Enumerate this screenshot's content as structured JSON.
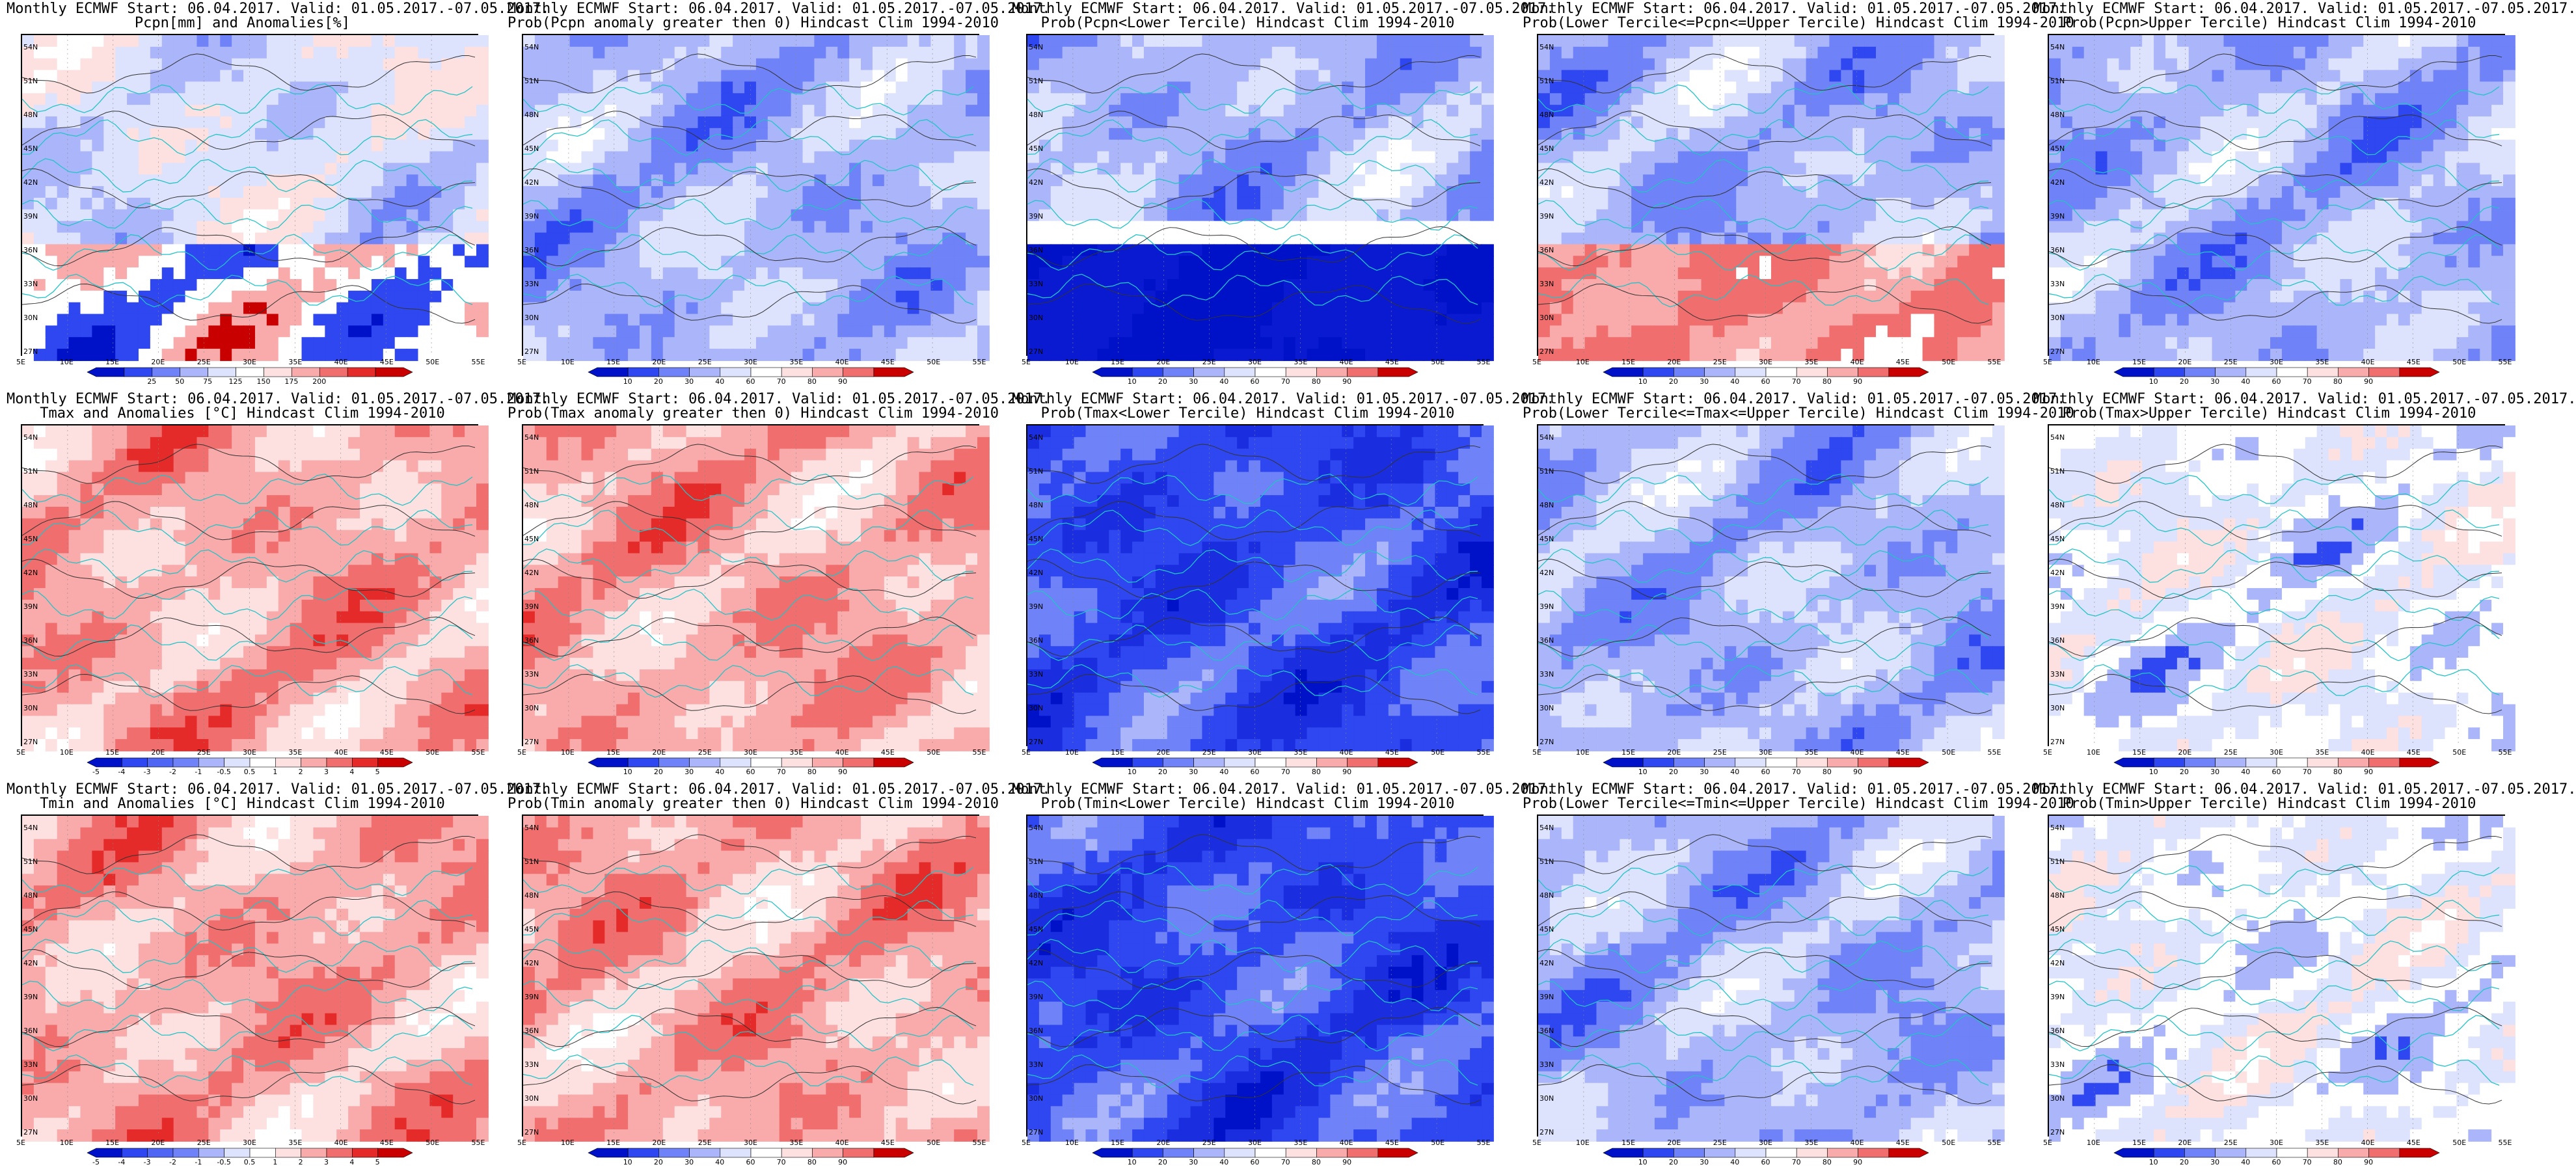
{
  "axes": {
    "lat_labels": [
      "54N",
      "51N",
      "48N",
      "45N",
      "42N",
      "39N",
      "36N",
      "33N",
      "30N",
      "27N"
    ],
    "lon_labels": [
      "5E",
      "10E",
      "15E",
      "20E",
      "25E",
      "30E",
      "35E",
      "40E",
      "45E",
      "50E",
      "55E"
    ]
  },
  "colorbars": {
    "pcpn_anom": {
      "ticks": [
        "25",
        "50",
        "75",
        "125",
        "150",
        "175",
        "200"
      ],
      "colors": [
        "#0012c8",
        "#2f47f0",
        "#6f82f7",
        "#aab5fa",
        "#dde2fd",
        "#ffffff",
        "#fde0e0",
        "#f9aaaa",
        "#f06e6e",
        "#e52a2a",
        "#c80000"
      ]
    },
    "prob": {
      "ticks": [
        "10",
        "20",
        "30",
        "40",
        "60",
        "70",
        "80",
        "90"
      ],
      "colors": [
        "#0012c8",
        "#2f47f0",
        "#6f82f7",
        "#aab5fa",
        "#dde2fd",
        "#ffffff",
        "#fde0e0",
        "#f9aaaa",
        "#f06e6e",
        "#c80000"
      ]
    },
    "temp_anom": {
      "ticks": [
        "-5",
        "-4",
        "-3",
        "-2",
        "-1",
        "-0.5",
        "0.5",
        "1",
        "2",
        "3",
        "4",
        "5"
      ],
      "colors": [
        "#0012c8",
        "#2f47f0",
        "#4f66f4",
        "#6f82f7",
        "#aab5fa",
        "#dde2fd",
        "#ffffff",
        "#fde0e0",
        "#f9aaaa",
        "#f06e6e",
        "#e52a2a",
        "#c80000"
      ]
    }
  },
  "panels": [
    {
      "line1": "Monthly ECMWF Start: 06.04.2017. Valid: 01.05.2017.-07.05.2017.",
      "line2": "Pcpn[mm] and Anomalies[%]",
      "scale": "pcpn_anom",
      "palette": "pcpn"
    },
    {
      "line1": "Monthly ECMWF Start: 06.04.2017. Valid: 01.05.2017.-07.05.2017.",
      "line2": "Prob(Pcpn anomaly greater then 0) Hindcast Clim 1994-2010",
      "scale": "prob",
      "palette": "blue"
    },
    {
      "line1": "Monthly ECMWF Start: 06.04.2017. Valid: 01.05.2017.-07.05.2017.",
      "line2": "Prob(Pcpn<Lower Tercile) Hindcast Clim 1994-2010",
      "scale": "prob",
      "palette": "lowerbelt"
    },
    {
      "line1": "Monthly ECMWF Start: 06.04.2017. Valid: 01.05.2017.-07.05.2017.",
      "line2": "Prob(Lower Tercile<=Pcpn<=Upper Tercile) Hindcast Clim 1994-2010",
      "scale": "prob",
      "palette": "mixedsouth"
    },
    {
      "line1": "Monthly ECMWF Start: 06.04.2017. Valid: 01.05.2017.-07.05.2017.",
      "line2": "Prob(Pcpn>Upper Tercile) Hindcast Clim 1994-2010",
      "scale": "prob",
      "palette": "blue"
    },
    {
      "line1": "Monthly ECMWF Start: 06.04.2017. Valid: 01.05.2017.-07.05.2017.",
      "line2": "Tmax and Anomalies [°C] Hindcast Clim 1994-2010",
      "scale": "temp_anom",
      "palette": "red"
    },
    {
      "line1": "Monthly ECMWF Start: 06.04.2017. Valid: 01.05.2017.-07.05.2017.",
      "line2": "Prob(Tmax anomaly greater then 0) Hindcast Clim 1994-2010",
      "scale": "prob",
      "palette": "red"
    },
    {
      "line1": "Monthly ECMWF Start: 06.04.2017. Valid: 01.05.2017.-07.05.2017.",
      "line2": "Prob(Tmax<Lower Tercile) Hindcast Clim 1994-2010",
      "scale": "prob",
      "palette": "deepblue"
    },
    {
      "line1": "Monthly ECMWF Start: 06.04.2017. Valid: 01.05.2017.-07.05.2017.",
      "line2": "Prob(Lower Tercile<=Tmax<=Upper Tercile) Hindcast Clim 1994-2010",
      "scale": "prob",
      "palette": "blue"
    },
    {
      "line1": "Monthly ECMWF Start: 06.04.2017. Valid: 01.05.2017.-07.05.2017.",
      "line2": "Prob(Tmax>Upper Tercile) Hindcast Clim 1994-2010",
      "scale": "prob",
      "palette": "lightmix"
    },
    {
      "line1": "Monthly ECMWF Start: 06.04.2017. Valid: 01.05.2017.-07.05.2017.",
      "line2": "Tmin and Anomalies [°C] Hindcast Clim 1994-2010",
      "scale": "temp_anom",
      "palette": "red"
    },
    {
      "line1": "Monthly ECMWF Start: 06.04.2017. Valid: 01.05.2017.-07.05.2017.",
      "line2": "Prob(Tmin anomaly greater then 0) Hindcast Clim 1994-2010",
      "scale": "prob",
      "palette": "red"
    },
    {
      "line1": "Monthly ECMWF Start: 06.04.2017. Valid: 01.05.2017.-07.05.2017.",
      "line2": "Prob(Tmin<Lower Tercile) Hindcast Clim 1994-2010",
      "scale": "prob",
      "palette": "deepblue"
    },
    {
      "line1": "Monthly ECMWF Start: 06.04.2017. Valid: 01.05.2017.-07.05.2017.",
      "line2": "Prob(Lower Tercile<=Tmin<=Upper Tercile) Hindcast Clim 1994-2010",
      "scale": "prob",
      "palette": "blue"
    },
    {
      "line1": "Monthly ECMWF Start: 06.04.2017. Valid: 01.05.2017.-07.05.2017.",
      "line2": "Prob(Tmin>Upper Tercile) Hindcast Clim 1994-2010",
      "scale": "prob",
      "palette": "lightmix"
    }
  ]
}
